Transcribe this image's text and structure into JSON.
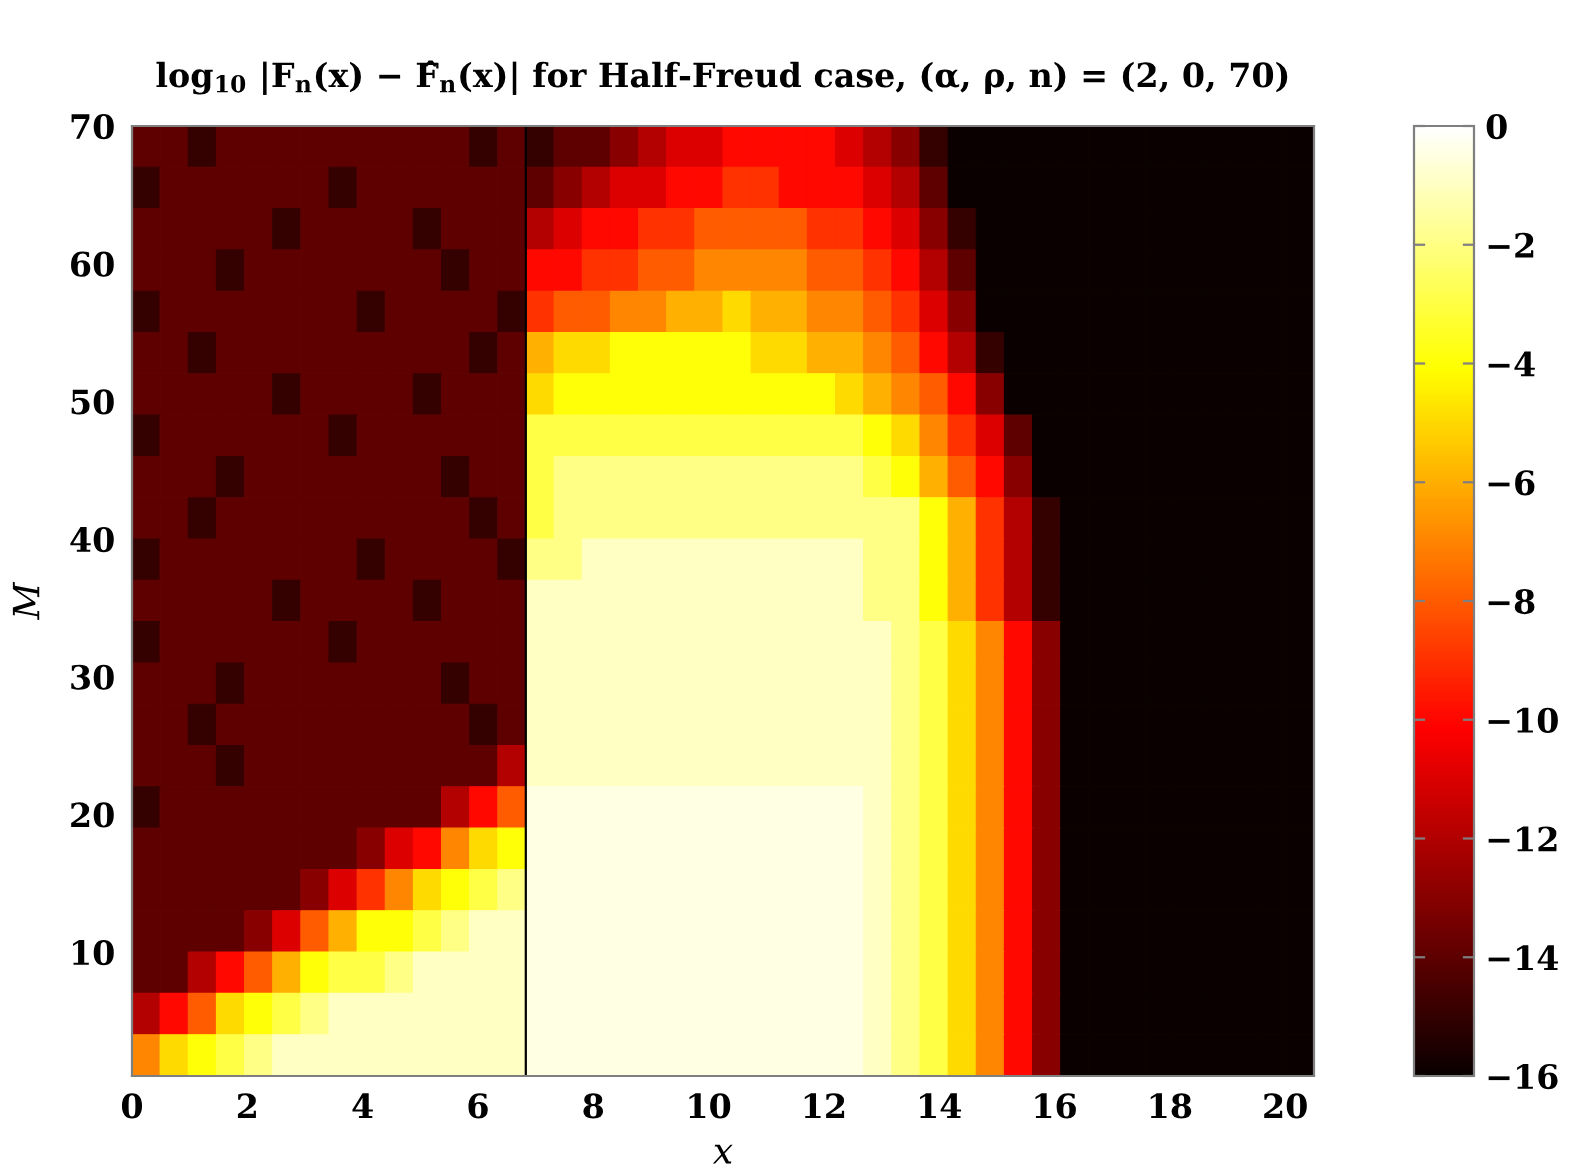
{
  "chart_data": {
    "type": "heatmap",
    "title": "log$_{10}$ |F$_{n}$(x) − F̂$_{n}$(x)| for Half-Freud case, (α, ρ, n) = (2, 0, 70)",
    "xlabel": "x",
    "ylabel": "M",
    "xlim": [
      0,
      20.5
    ],
    "ylim": [
      1,
      70
    ],
    "xticks": [
      0,
      2,
      4,
      6,
      8,
      10,
      12,
      14,
      16,
      18,
      20
    ],
    "yticks": [
      10,
      20,
      30,
      40,
      50,
      60,
      70
    ],
    "clim": [
      -16,
      0
    ],
    "cticks": [
      0,
      -2,
      -4,
      -6,
      -8,
      -10,
      -12,
      -14,
      -16
    ],
    "ref_lines": [
      {
        "axis": "x",
        "value": 6.83,
        "color": "#000000"
      }
    ],
    "cells": [
      [
        -14,
        -14,
        -15,
        -14,
        -14,
        -14,
        -14,
        -14,
        -14,
        -14,
        -14,
        -14,
        -15,
        -14,
        -15,
        -14,
        -14,
        -13,
        -12,
        -11,
        -11,
        -10,
        -10,
        -10,
        -10,
        -11,
        -12,
        -13,
        -15,
        -16,
        -16,
        -16,
        -16,
        -16,
        -16,
        -16,
        -16,
        -16,
        -16,
        -16,
        -16,
        -16
      ],
      [
        -15,
        -14,
        -14,
        -14,
        -14,
        -14,
        -14,
        -15,
        -14,
        -14,
        -14,
        -14,
        -14,
        -14,
        -14,
        -13,
        -12,
        -11,
        -11,
        -10,
        -10,
        -9,
        -9,
        -10,
        -10,
        -10,
        -11,
        -12,
        -14,
        -16,
        -16,
        -16,
        -16,
        -16,
        -16,
        -16,
        -16,
        -16,
        -16,
        -16,
        -16,
        -16
      ],
      [
        -14,
        -14,
        -14,
        -14,
        -14,
        -15,
        -14,
        -14,
        -14,
        -14,
        -15,
        -14,
        -14,
        -14,
        -12,
        -11,
        -10,
        -10,
        -9,
        -9,
        -8,
        -8,
        -8,
        -8,
        -9,
        -9,
        -10,
        -11,
        -13,
        -15,
        -16,
        -16,
        -16,
        -16,
        -16,
        -16,
        -16,
        -16,
        -16,
        -16,
        -16,
        -16
      ],
      [
        -14,
        -14,
        -14,
        -15,
        -14,
        -14,
        -14,
        -14,
        -14,
        -14,
        -14,
        -15,
        -14,
        -14,
        -10,
        -10,
        -9,
        -9,
        -8,
        -8,
        -7,
        -7,
        -7,
        -7,
        -8,
        -8,
        -9,
        -10,
        -12,
        -14,
        -16,
        -16,
        -16,
        -16,
        -16,
        -16,
        -16,
        -16,
        -16,
        -16,
        -16,
        -16
      ],
      [
        -15,
        -14,
        -14,
        -14,
        -14,
        -14,
        -14,
        -14,
        -15,
        -14,
        -14,
        -14,
        -14,
        -15,
        -9,
        -8,
        -8,
        -7,
        -7,
        -6,
        -6,
        -5,
        -6,
        -6,
        -7,
        -7,
        -8,
        -9,
        -11,
        -13,
        -16,
        -16,
        -16,
        -16,
        -16,
        -16,
        -16,
        -16,
        -16,
        -16,
        -16,
        -16
      ],
      [
        -14,
        -14,
        -15,
        -14,
        -14,
        -14,
        -14,
        -14,
        -14,
        -14,
        -14,
        -14,
        -15,
        -14,
        -6,
        -5,
        -5,
        -4,
        -4,
        -4,
        -4,
        -4,
        -5,
        -5,
        -6,
        -6,
        -7,
        -8,
        -10,
        -12,
        -15,
        -16,
        -16,
        -16,
        -16,
        -16,
        -16,
        -16,
        -16,
        -16,
        -16,
        -16
      ],
      [
        -14,
        -14,
        -14,
        -14,
        -14,
        -15,
        -14,
        -14,
        -14,
        -14,
        -15,
        -14,
        -14,
        -14,
        -5,
        -4,
        -4,
        -4,
        -4,
        -4,
        -4,
        -4,
        -4,
        -4,
        -4,
        -5,
        -6,
        -7,
        -8,
        -10,
        -13,
        -16,
        -16,
        -16,
        -16,
        -16,
        -16,
        -16,
        -16,
        -16,
        -16,
        -16
      ],
      [
        -15,
        -14,
        -14,
        -14,
        -14,
        -14,
        -14,
        -15,
        -14,
        -14,
        -14,
        -14,
        -14,
        -14,
        -3,
        -3,
        -3,
        -3,
        -3,
        -3,
        -3,
        -3,
        -3,
        -3,
        -3,
        -3,
        -4,
        -5,
        -7,
        -9,
        -11,
        -14,
        -16,
        -16,
        -16,
        -16,
        -16,
        -16,
        -16,
        -16,
        -16,
        -16
      ],
      [
        -14,
        -14,
        -14,
        -15,
        -14,
        -14,
        -14,
        -14,
        -14,
        -14,
        -14,
        -15,
        -14,
        -14,
        -3,
        -2,
        -2,
        -2,
        -2,
        -2,
        -2,
        -2,
        -2,
        -2,
        -2,
        -2,
        -3,
        -4,
        -6,
        -8,
        -10,
        -13,
        -16,
        -16,
        -16,
        -16,
        -16,
        -16,
        -16,
        -16,
        -16,
        -16
      ],
      [
        -14,
        -14,
        -15,
        -14,
        -14,
        -14,
        -14,
        -14,
        -14,
        -14,
        -14,
        -14,
        -15,
        -14,
        -3,
        -2,
        -2,
        -2,
        -2,
        -2,
        -2,
        -2,
        -2,
        -2,
        -2,
        -2,
        -2,
        -2,
        -4,
        -6,
        -9,
        -12,
        -15,
        -16,
        -16,
        -16,
        -16,
        -16,
        -16,
        -16,
        -16,
        -16
      ],
      [
        -15,
        -14,
        -14,
        -14,
        -14,
        -14,
        -14,
        -14,
        -15,
        -14,
        -14,
        -14,
        -14,
        -15,
        -2,
        -2,
        -1,
        -1,
        -1,
        -1,
        -1,
        -1,
        -1,
        -1,
        -1,
        -1,
        -2,
        -2,
        -4,
        -6,
        -9,
        -12,
        -15,
        -16,
        -16,
        -16,
        -16,
        -16,
        -16,
        -16,
        -16,
        -16
      ],
      [
        -14,
        -14,
        -14,
        -14,
        -14,
        -15,
        -14,
        -14,
        -14,
        -14,
        -15,
        -14,
        -14,
        -14,
        -1,
        -1,
        -1,
        -1,
        -1,
        -1,
        -1,
        -1,
        -1,
        -1,
        -1,
        -1,
        -2,
        -2,
        -4,
        -6,
        -9,
        -12,
        -15,
        -16,
        -16,
        -16,
        -16,
        -16,
        -16,
        -16,
        -16,
        -16
      ],
      [
        -15,
        -14,
        -14,
        -14,
        -14,
        -14,
        -14,
        -15,
        -14,
        -14,
        -14,
        -14,
        -14,
        -14,
        -1,
        -1,
        -1,
        -1,
        -1,
        -1,
        -1,
        -1,
        -1,
        -1,
        -1,
        -1,
        -1,
        -2,
        -3,
        -5,
        -7,
        -10,
        -13,
        -16,
        -16,
        -16,
        -16,
        -16,
        -16,
        -16,
        -16,
        -16
      ],
      [
        -14,
        -14,
        -14,
        -15,
        -14,
        -14,
        -14,
        -14,
        -14,
        -14,
        -14,
        -15,
        -14,
        -14,
        -1,
        -1,
        -1,
        -1,
        -1,
        -1,
        -1,
        -1,
        -1,
        -1,
        -1,
        -1,
        -1,
        -2,
        -3,
        -5,
        -7,
        -10,
        -13,
        -16,
        -16,
        -16,
        -16,
        -16,
        -16,
        -16,
        -16,
        -16
      ],
      [
        -14,
        -14,
        -15,
        -14,
        -14,
        -14,
        -14,
        -14,
        -14,
        -14,
        -14,
        -14,
        -15,
        -14,
        -1,
        -1,
        -1,
        -1,
        -1,
        -1,
        -1,
        -1,
        -1,
        -1,
        -1,
        -1,
        -1,
        -2,
        -3,
        -5,
        -7,
        -10,
        -13,
        -16,
        -16,
        -16,
        -16,
        -16,
        -16,
        -16,
        -16,
        -16
      ],
      [
        -14,
        -14,
        -14,
        -15,
        -14,
        -14,
        -14,
        -14,
        -14,
        -14,
        -14,
        -14,
        -14,
        -12,
        -1,
        -1,
        -1,
        -1,
        -1,
        -1,
        -1,
        -1,
        -1,
        -1,
        -1,
        -1,
        -1,
        -2,
        -3,
        -5,
        -7,
        -10,
        -13,
        -16,
        -16,
        -16,
        -16,
        -16,
        -16,
        -16,
        -16,
        -16
      ],
      [
        -15,
        -14,
        -14,
        -14,
        -14,
        -14,
        -14,
        -14,
        -14,
        -14,
        -14,
        -12,
        -10,
        -8,
        -0.5,
        -0.5,
        -0.5,
        -0.5,
        -0.5,
        -0.5,
        -0.5,
        -0.5,
        -0.5,
        -0.5,
        -0.5,
        -0.5,
        -1,
        -2,
        -3,
        -5,
        -7,
        -10,
        -13,
        -16,
        -16,
        -16,
        -16,
        -16,
        -16,
        -16,
        -16,
        -16
      ],
      [
        -14,
        -14,
        -14,
        -14,
        -14,
        -14,
        -14,
        -14,
        -13,
        -11,
        -10,
        -7,
        -5,
        -4,
        -0.5,
        -0.5,
        -0.5,
        -0.5,
        -0.5,
        -0.5,
        -0.5,
        -0.5,
        -0.5,
        -0.5,
        -0.5,
        -0.5,
        -1,
        -2,
        -3,
        -5,
        -7,
        -10,
        -13,
        -16,
        -16,
        -16,
        -16,
        -16,
        -16,
        -16,
        -16,
        -16
      ],
      [
        -14,
        -14,
        -14,
        -14,
        -14,
        -14,
        -13,
        -11,
        -9,
        -7,
        -5,
        -4,
        -3,
        -2,
        -0.5,
        -0.5,
        -0.5,
        -0.5,
        -0.5,
        -0.5,
        -0.5,
        -0.5,
        -0.5,
        -0.5,
        -0.5,
        -0.5,
        -1,
        -2,
        -3,
        -5,
        -7,
        -10,
        -13,
        -16,
        -16,
        -16,
        -16,
        -16,
        -16,
        -16,
        -16,
        -16
      ],
      [
        -14,
        -14,
        -14,
        -14,
        -13,
        -11,
        -8,
        -6,
        -4,
        -4,
        -3,
        -2,
        -1,
        -1,
        -0.5,
        -0.5,
        -0.5,
        -0.5,
        -0.5,
        -0.5,
        -0.5,
        -0.5,
        -0.5,
        -0.5,
        -0.5,
        -0.5,
        -1,
        -2,
        -3,
        -5,
        -7,
        -10,
        -13,
        -16,
        -16,
        -16,
        -16,
        -16,
        -16,
        -16,
        -16,
        -16
      ],
      [
        -14,
        -14,
        -12,
        -10,
        -8,
        -6,
        -4,
        -3,
        -3,
        -2,
        -1,
        -1,
        -1,
        -1,
        -0.5,
        -0.5,
        -0.5,
        -0.5,
        -0.5,
        -0.5,
        -0.5,
        -0.5,
        -0.5,
        -0.5,
        -0.5,
        -0.5,
        -1,
        -2,
        -3,
        -5,
        -7,
        -10,
        -13,
        -16,
        -16,
        -16,
        -16,
        -16,
        -16,
        -16,
        -16,
        -16
      ],
      [
        -12,
        -10,
        -8,
        -5,
        -4,
        -3,
        -2,
        -1,
        -1,
        -1,
        -1,
        -1,
        -1,
        -1,
        -0.5,
        -0.5,
        -0.5,
        -0.5,
        -0.5,
        -0.5,
        -0.5,
        -0.5,
        -0.5,
        -0.5,
        -0.5,
        -0.5,
        -1,
        -2,
        -3,
        -5,
        -7,
        -10,
        -13,
        -16,
        -16,
        -16,
        -16,
        -16,
        -16,
        -16,
        -16,
        -16
      ],
      [
        -7,
        -5,
        -4,
        -3,
        -2,
        -1,
        -1,
        -1,
        -1,
        -1,
        -1,
        -1,
        -1,
        -1,
        -0.5,
        -0.5,
        -0.5,
        -0.5,
        -0.5,
        -0.5,
        -0.5,
        -0.5,
        -0.5,
        -0.5,
        -0.5,
        -0.5,
        -1,
        -2,
        -3,
        -5,
        -7,
        -10,
        -13,
        -16,
        -16,
        -16,
        -16,
        -16,
        -16,
        -16,
        -16,
        -16
      ]
    ]
  }
}
